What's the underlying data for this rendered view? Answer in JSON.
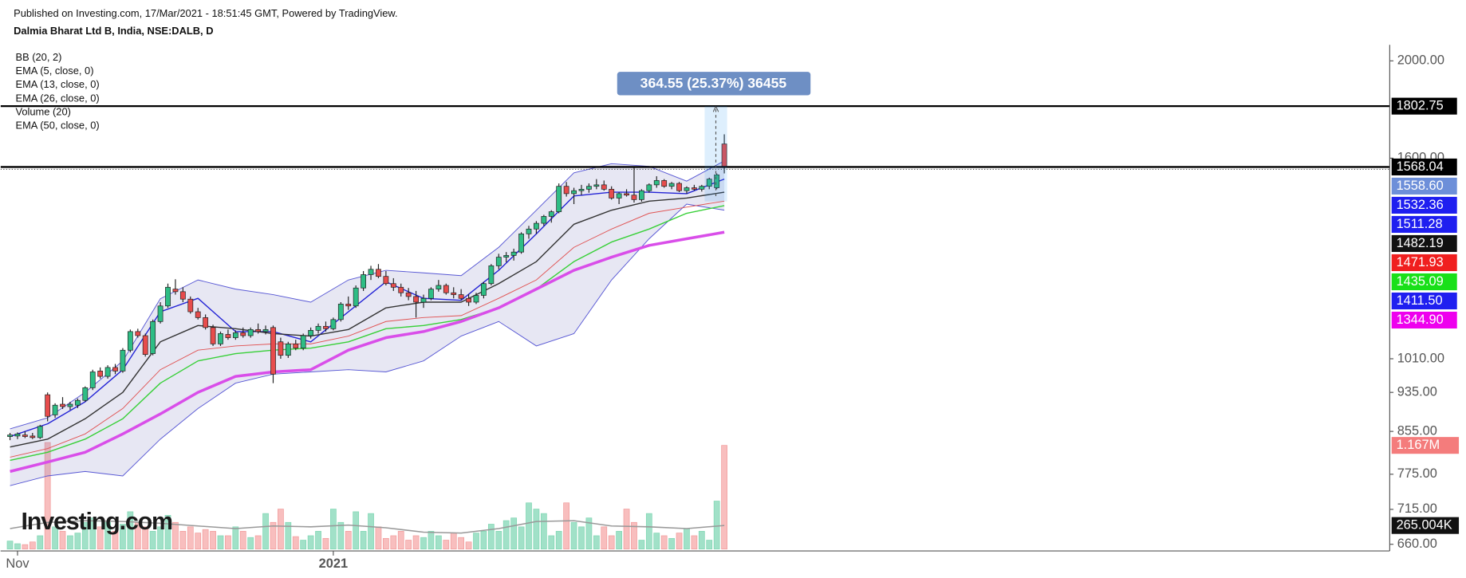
{
  "chart_data": {
    "type": "candlestick",
    "header": "Published on Investing.com, 17/Mar/2021 - 18:51:45 GMT, Powered by TradingView.",
    "title": "Dalmia Bharat Ltd B, India, NSE:DALB, D",
    "watermark": "Investing.com",
    "log_scale": true,
    "ylim": [
      650,
      2075
    ],
    "yticks": [
      {
        "value": 2000,
        "label": "2000.00"
      },
      {
        "value": 1600,
        "label": "1600.00"
      },
      {
        "value": 1010,
        "label": "1010.00"
      },
      {
        "value": 935,
        "label": "935.00"
      },
      {
        "value": 855,
        "label": "855.00"
      },
      {
        "value": 775,
        "label": "775.00"
      },
      {
        "value": 715,
        "label": "715.00"
      },
      {
        "value": 660,
        "label": "660.00"
      }
    ],
    "xlim": [
      -1.25,
      183.5
    ],
    "xticks": [
      {
        "value": 1,
        "label": "Nov"
      },
      {
        "value": 43,
        "label": "2021"
      }
    ],
    "up_color": "#26a69a",
    "body_up_color": "#2ebd85",
    "down_color": "#e74c4c",
    "open": [
      845,
      846,
      848,
      846,
      843,
      930,
      888,
      910,
      905,
      908,
      918,
      945,
      982,
      970,
      990,
      982,
      1030,
      1075,
      1065,
      1022,
      1100,
      1140,
      1185,
      1178,
      1158,
      1125,
      1110,
      1085,
      1045,
      1068,
      1060,
      1072,
      1065,
      1080,
      1075,
      1085,
      1050,
      1018,
      1045,
      1035,
      1065,
      1078,
      1088,
      1082,
      1105,
      1145,
      1140,
      1188,
      1225,
      1240,
      1220,
      1200,
      1190,
      1175,
      1165,
      1150,
      1160,
      1185,
      1195,
      1175,
      1170,
      1160,
      1150,
      1168,
      1200,
      1250,
      1275,
      1280,
      1290,
      1345,
      1360,
      1378,
      1400,
      1415,
      1500,
      1475,
      1485,
      1490,
      1500,
      1505,
      1490,
      1460,
      1475,
      1470,
      1455,
      1485,
      1505,
      1520,
      1500,
      1510,
      1485,
      1495,
      1490,
      1500,
      1495,
      1653
    ],
    "high": [
      852,
      853,
      855,
      852,
      868,
      935,
      912,
      925,
      915,
      922,
      948,
      985,
      990,
      995,
      998,
      1035,
      1080,
      1082,
      1070,
      1105,
      1150,
      1200,
      1212,
      1190,
      1165,
      1135,
      1118,
      1092,
      1075,
      1080,
      1078,
      1085,
      1085,
      1095,
      1090,
      1090,
      1060,
      1050,
      1055,
      1070,
      1085,
      1095,
      1100,
      1110,
      1150,
      1165,
      1195,
      1235,
      1250,
      1255,
      1235,
      1215,
      1200,
      1188,
      1180,
      1170,
      1190,
      1210,
      1200,
      1190,
      1185,
      1172,
      1175,
      1205,
      1255,
      1285,
      1290,
      1300,
      1350,
      1370,
      1385,
      1405,
      1420,
      1510,
      1515,
      1495,
      1505,
      1510,
      1525,
      1520,
      1500,
      1480,
      1490,
      1565,
      1490,
      1510,
      1535,
      1525,
      1515,
      1515,
      1500,
      1505,
      1505,
      1530,
      1545,
      1690
    ],
    "low": [
      838,
      840,
      842,
      840,
      840,
      875,
      882,
      900,
      898,
      902,
      915,
      940,
      965,
      965,
      975,
      978,
      1025,
      1060,
      1015,
      1018,
      1095,
      1135,
      1170,
      1150,
      1120,
      1105,
      1080,
      1040,
      1040,
      1055,
      1055,
      1060,
      1060,
      1070,
      1068,
      955,
      1010,
      1012,
      1030,
      1030,
      1058,
      1070,
      1075,
      1078,
      1100,
      1130,
      1135,
      1180,
      1210,
      1215,
      1195,
      1180,
      1165,
      1155,
      1110,
      1135,
      1155,
      1178,
      1170,
      1160,
      1155,
      1140,
      1145,
      1160,
      1195,
      1240,
      1260,
      1265,
      1285,
      1330,
      1345,
      1370,
      1380,
      1410,
      1465,
      1440,
      1470,
      1478,
      1490,
      1485,
      1455,
      1440,
      1465,
      1445,
      1448,
      1478,
      1495,
      1495,
      1490,
      1480,
      1475,
      1485,
      1482,
      1490,
      1490,
      1545
    ],
    "close": [
      848,
      850,
      845,
      843,
      865,
      885,
      908,
      905,
      910,
      918,
      945,
      980,
      970,
      990,
      982,
      1030,
      1075,
      1065,
      1020,
      1100,
      1140,
      1190,
      1178,
      1158,
      1125,
      1110,
      1085,
      1045,
      1070,
      1060,
      1072,
      1065,
      1080,
      1075,
      1080,
      975,
      1018,
      1045,
      1035,
      1065,
      1078,
      1088,
      1082,
      1105,
      1145,
      1140,
      1188,
      1225,
      1240,
      1220,
      1200,
      1190,
      1175,
      1165,
      1150,
      1160,
      1185,
      1195,
      1175,
      1170,
      1160,
      1150,
      1168,
      1200,
      1250,
      1275,
      1280,
      1290,
      1345,
      1360,
      1378,
      1400,
      1415,
      1500,
      1475,
      1485,
      1490,
      1500,
      1505,
      1490,
      1460,
      1475,
      1470,
      1455,
      1485,
      1505,
      1520,
      1500,
      1510,
      1485,
      1495,
      1490,
      1500,
      1525,
      1540,
      1568.04
    ],
    "line_x": [
      0,
      5,
      10,
      15,
      20,
      25,
      30,
      35,
      40,
      45,
      50,
      55,
      60,
      65,
      70,
      75,
      80,
      85,
      90,
      95
    ],
    "series": [
      {
        "name": "BB (20, 2)",
        "kind": "band",
        "color": "#5757d4",
        "fill": "rgba(110,110,185,0.17)",
        "middle_color": "#e05252",
        "upper": [
          860,
          882,
          935,
          1005,
          1159,
          1210,
          1185,
          1170,
          1150,
          1210,
          1237,
          1230,
          1222,
          1304,
          1420,
          1547,
          1580,
          1570,
          1518,
          1590
        ],
        "middle": [
          806,
          822,
          850,
          901,
          985,
          1030,
          1040,
          1045,
          1045,
          1064,
          1100,
          1110,
          1115,
          1160,
          1210,
          1304,
          1360,
          1410,
          1430,
          1450
        ],
        "lower": [
          755,
          772,
          780,
          772,
          840,
          901,
          955,
          975,
          980,
          985,
          980,
          1005,
          1064,
          1100,
          1040,
          1070,
          1210,
          1330,
          1440,
          1420
        ]
      },
      {
        "name": "EMA (5, close, 0)",
        "kind": "line",
        "color": "#2424d6",
        "line_width": 1.2,
        "values": [
          845,
          870,
          915,
          985,
          1125,
          1160,
          1075,
          1075,
          1050,
          1125,
          1205,
          1160,
          1155,
          1237,
          1345,
          1467,
          1480,
          1480,
          1475,
          1525
        ]
      },
      {
        "name": "EMA (13, close, 0)",
        "kind": "line",
        "color": "#333333",
        "line_width": 1.2,
        "values": [
          825,
          840,
          880,
          935,
          1050,
          1090,
          1082,
          1070,
          1064,
          1080,
          1135,
          1150,
          1150,
          1200,
          1262,
          1375,
          1420,
          1450,
          1460,
          1480
        ]
      },
      {
        "name": "EMA (26, close, 0)",
        "kind": "line",
        "color": "#38d038",
        "line_width": 1.2,
        "values": [
          800,
          815,
          840,
          880,
          955,
          1005,
          1022,
          1030,
          1035,
          1050,
          1082,
          1090,
          1105,
          1135,
          1185,
          1262,
          1320,
          1360,
          1410,
          1435
        ]
      },
      {
        "name": "Volume (20)",
        "kind": "volume",
        "up_color": "rgba(46,189,133,0.45)",
        "down_color": "rgba(240,110,110,0.45)",
        "avg_color": "#999999",
        "y2lim": [
          0,
          1167000
        ],
        "values": [
          90000,
          60000,
          50000,
          80000,
          150000,
          1200000,
          250000,
          200000,
          150000,
          180000,
          300000,
          350000,
          250000,
          300000,
          200000,
          280000,
          420000,
          300000,
          250000,
          200000,
          250000,
          380000,
          300000,
          200000,
          250000,
          180000,
          220000,
          200000,
          150000,
          150000,
          250000,
          200000,
          130000,
          150000,
          400000,
          300000,
          450000,
          300000,
          140000,
          100000,
          150000,
          200000,
          120000,
          450000,
          300000,
          200000,
          420000,
          200000,
          400000,
          250000,
          120000,
          150000,
          200000,
          100000,
          150000,
          130000,
          200000,
          150000,
          100000,
          180000,
          130000,
          80000,
          180000,
          200000,
          280000,
          200000,
          320000,
          350000,
          250000,
          520000,
          450000,
          400000,
          150000,
          200000,
          520000,
          300000,
          250000,
          350000,
          150000,
          250000,
          150000,
          200000,
          450000,
          300000,
          100000,
          400000,
          180000,
          150000,
          120000,
          180000,
          230000,
          150000,
          200000,
          100000,
          540000,
          1167000
        ],
        "avg": [
          230000,
          300000,
          320000,
          310000,
          290000,
          260000,
          230000,
          260000,
          250000,
          270000,
          240000,
          190000,
          180000,
          230000,
          310000,
          320000,
          260000,
          250000,
          230000,
          265004
        ]
      },
      {
        "name": "EMA (50, close, 0)",
        "kind": "line",
        "color": "#d94ee9",
        "line_width": 3,
        "values": [
          780,
          797,
          815,
          850,
          890,
          935,
          970,
          980,
          985,
          1030,
          1060,
          1075,
          1100,
          1135,
          1185,
          1237,
          1275,
          1310,
          1330,
          1350
        ]
      }
    ],
    "hlines": [
      {
        "value": 1802.75,
        "label": "1802.75"
      },
      {
        "value": 1568.04,
        "label": "1568.04"
      }
    ],
    "last_value_labels": [
      {
        "value": 1558.6,
        "label": "1558.60",
        "color": "#6d8fd9"
      },
      {
        "value": 1532.36,
        "label": "1532.36",
        "color": "#1f1ff0"
      },
      {
        "value": 1511.28,
        "label": "1511.28",
        "color": "#1f1ff0"
      },
      {
        "value": 1482.19,
        "label": "1482.19",
        "color": "#111111"
      },
      {
        "value": 1471.93,
        "label": "1471.93",
        "color": "#f01f1f"
      },
      {
        "value": 1435.09,
        "label": "1435.09",
        "color": "#19e019"
      },
      {
        "value": 1411.5,
        "label": "1411.50",
        "color": "#1f1ff0"
      },
      {
        "value": 1344.9,
        "label": "1344.90",
        "color": "#ee00ee"
      }
    ],
    "volume_labels": [
      {
        "value": 1167000,
        "label": "1.167M",
        "color": "#f47c7c"
      },
      {
        "value": 265004,
        "label": "265.004K",
        "color": "#111111"
      }
    ],
    "annotation": "364.55 (25.37%) 36455"
  }
}
